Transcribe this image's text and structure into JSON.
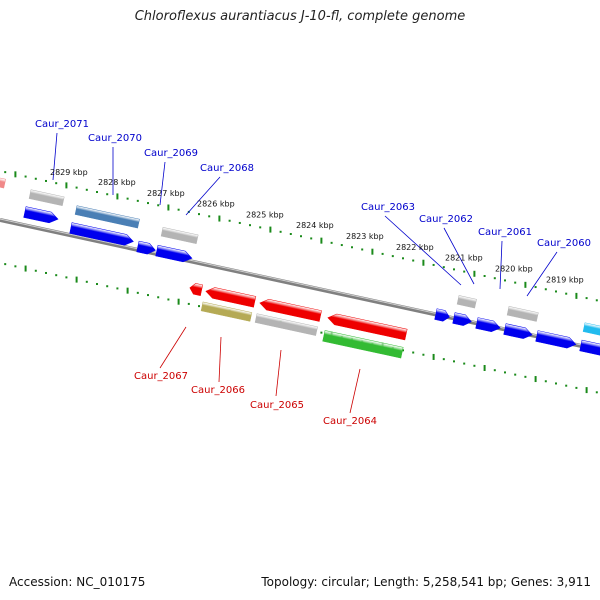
{
  "title": "Chloroflexus aurantiacus J-10-fl, complete genome",
  "footer": {
    "accession": "Accession: NC_010175",
    "summary": "Topology: circular; Length: 5,258,541 bp; Genes: 3,911"
  },
  "colors": {
    "backbone": "#808080",
    "tick": "#1a8a1a",
    "forward_label": "#0000cc",
    "reverse_label": "#cc0000",
    "blue": "#0000ee",
    "red": "#ee0000",
    "gray": "#b4b4b4",
    "steel": "#4a7fb5",
    "olive": "#b5aa55",
    "green": "#33bb33",
    "cyan": "#22bbee",
    "pink": "#f08888"
  },
  "scale_labels": [
    "2829 kbp",
    "2828 kbp",
    "2827 kbp",
    "2826 kbp",
    "2825 kbp",
    "2824 kbp",
    "2823 kbp",
    "2822 kbp",
    "2821 kbp",
    "2820 kbp",
    "2819 kbp"
  ],
  "forward_genes": [
    "Caur_2071",
    "Caur_2070",
    "Caur_2069",
    "Caur_2068",
    "Caur_2063",
    "Caur_2062",
    "Caur_2061",
    "Caur_2060"
  ],
  "reverse_genes": [
    "Caur_2067",
    "Caur_2066",
    "Caur_2065",
    "Caur_2064"
  ]
}
